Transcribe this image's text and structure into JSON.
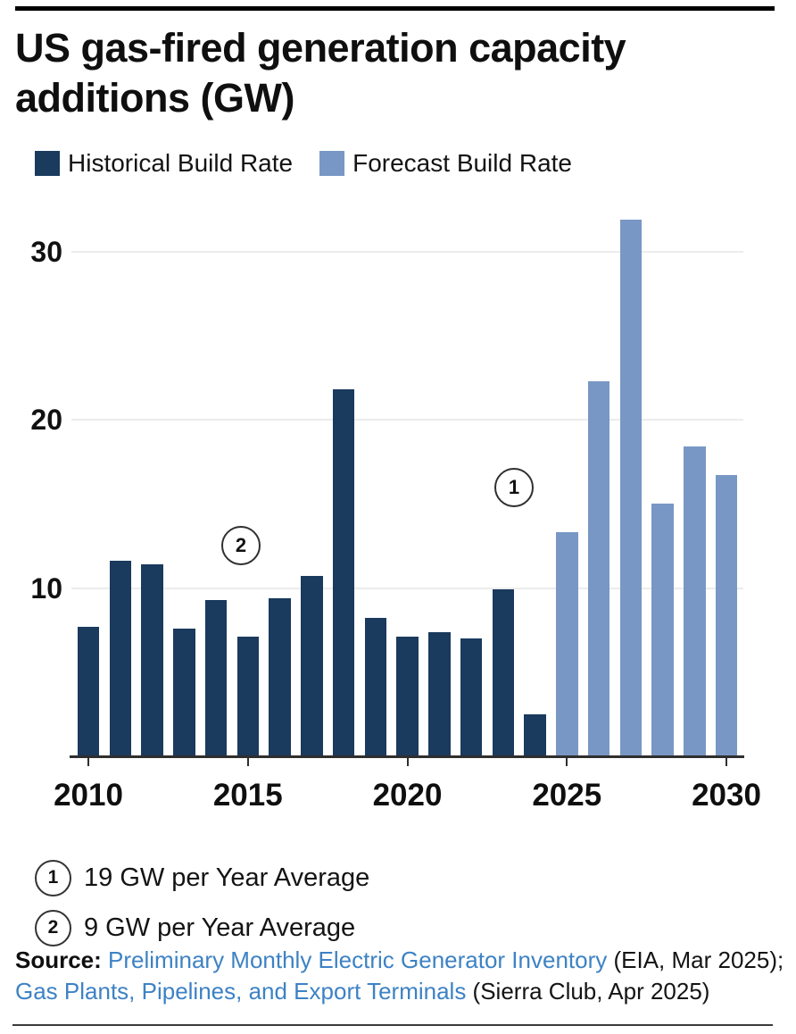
{
  "header": {
    "title_line1": "US gas-fired generation capacity",
    "title_line2": "additions (GW)",
    "title_full": "US gas-fired generation capacity additions (GW)"
  },
  "legend": {
    "items": [
      {
        "label": "Historical Build Rate",
        "color": "#1a3a5e"
      },
      {
        "label": "Forecast Build Rate",
        "color": "#7897c4"
      }
    ]
  },
  "chart_data": {
    "type": "bar",
    "title": "US gas-fired generation capacity additions (GW)",
    "unit": "GW",
    "xlim": [
      2010,
      2030
    ],
    "ylim": [
      0,
      32.2
    ],
    "yticks": [
      10,
      20,
      30
    ],
    "xticks": [
      2010,
      2015,
      2020,
      2025,
      2030
    ],
    "grid": true,
    "legend_position": "top-left",
    "series": [
      {
        "name": "Historical Build Rate",
        "color": "#1a3a5e",
        "years": [
          2010,
          2011,
          2012,
          2013,
          2014,
          2015,
          2016,
          2017,
          2018,
          2019,
          2020,
          2021,
          2022,
          2023,
          2024
        ],
        "values": [
          7.7,
          11.6,
          11.4,
          7.6,
          9.3,
          7.1,
          9.4,
          10.7,
          21.8,
          8.2,
          7.1,
          7.4,
          7.0,
          9.9,
          2.5
        ]
      },
      {
        "name": "Forecast Build Rate",
        "color": "#7897c4",
        "years": [
          2025,
          2026,
          2027,
          2028,
          2029,
          2030
        ],
        "values": [
          13.3,
          22.3,
          31.9,
          15.0,
          18.4,
          16.7
        ]
      }
    ],
    "annotations": [
      {
        "id": "1",
        "text": "19 GW per Year Average"
      },
      {
        "id": "2",
        "text": "9 GW per Year Average"
      }
    ]
  },
  "source": {
    "label": "Source:",
    "link1": "Preliminary Monthly Electric Generator Inventory",
    "mid": " (EIA, Mar 2025); ",
    "link2": "Gas Plants, Pipelines, and Export Terminals",
    "tail": " (Sierra Club, Apr 2025)",
    "link_color": "#3d82c4"
  }
}
